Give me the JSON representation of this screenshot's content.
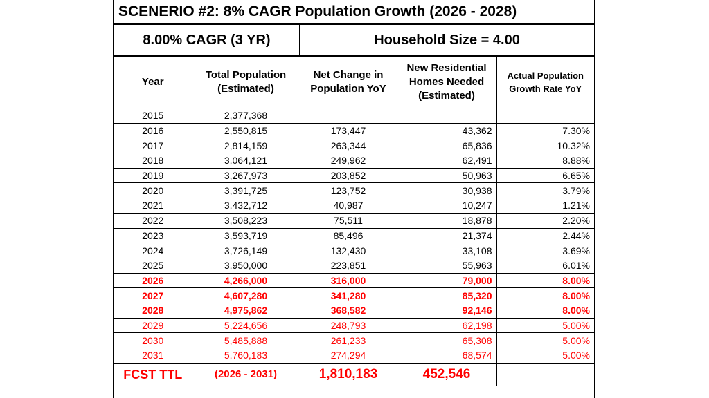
{
  "title": "SCENERIO #2: 8% CAGR Population Growth (2026 - 2028)",
  "subheader": {
    "cagr": "8.00% CAGR (3 YR)",
    "household": "Household Size = 4.00"
  },
  "columns": {
    "year": "Year",
    "population": [
      "Total Population",
      "(Estimated)"
    ],
    "net_change": [
      "Net Change in",
      "Population YoY"
    ],
    "homes": [
      "New Residential",
      "Homes Needed",
      "(Estimated)"
    ],
    "growth": [
      "Actual Population",
      "Growth Rate YoY"
    ]
  },
  "rows": [
    {
      "year": "2015",
      "population": "2,377,368",
      "net_change": "",
      "homes": "",
      "growth": "",
      "style": "normal"
    },
    {
      "year": "2016",
      "population": "2,550,815",
      "net_change": "173,447",
      "homes": "43,362",
      "growth": "7.30%",
      "style": "normal"
    },
    {
      "year": "2017",
      "population": "2,814,159",
      "net_change": "263,344",
      "homes": "65,836",
      "growth": "10.32%",
      "style": "normal"
    },
    {
      "year": "2018",
      "population": "3,064,121",
      "net_change": "249,962",
      "homes": "62,491",
      "growth": "8.88%",
      "style": "normal"
    },
    {
      "year": "2019",
      "population": "3,267,973",
      "net_change": "203,852",
      "homes": "50,963",
      "growth": "6.65%",
      "style": "normal"
    },
    {
      "year": "2020",
      "population": "3,391,725",
      "net_change": "123,752",
      "homes": "30,938",
      "growth": "3.79%",
      "style": "normal"
    },
    {
      "year": "2021",
      "population": "3,432,712",
      "net_change": "40,987",
      "homes": "10,247",
      "growth": "1.21%",
      "style": "normal"
    },
    {
      "year": "2022",
      "population": "3,508,223",
      "net_change": "75,511",
      "homes": "18,878",
      "growth": "2.20%",
      "style": "normal"
    },
    {
      "year": "2023",
      "population": "3,593,719",
      "net_change": "85,496",
      "homes": "21,374",
      "growth": "2.44%",
      "style": "normal"
    },
    {
      "year": "2024",
      "population": "3,726,149",
      "net_change": "132,430",
      "homes": "33,108",
      "growth": "3.69%",
      "style": "normal"
    },
    {
      "year": "2025",
      "population": "3,950,000",
      "net_change": "223,851",
      "homes": "55,963",
      "growth": "6.01%",
      "style": "normal"
    },
    {
      "year": "2026",
      "population": "4,266,000",
      "net_change": "316,000",
      "homes": "79,000",
      "growth": "8.00%",
      "style": "forecast-bold"
    },
    {
      "year": "2027",
      "population": "4,607,280",
      "net_change": "341,280",
      "homes": "85,320",
      "growth": "8.00%",
      "style": "forecast-bold"
    },
    {
      "year": "2028",
      "population": "4,975,862",
      "net_change": "368,582",
      "homes": "92,146",
      "growth": "8.00%",
      "style": "forecast-bold"
    },
    {
      "year": "2029",
      "population": "5,224,656",
      "net_change": "248,793",
      "homes": "62,198",
      "growth": "5.00%",
      "style": "forecast"
    },
    {
      "year": "2030",
      "population": "5,485,888",
      "net_change": "261,233",
      "homes": "65,308",
      "growth": "5.00%",
      "style": "forecast"
    },
    {
      "year": "2031",
      "population": "5,760,183",
      "net_change": "274,294",
      "homes": "68,574",
      "growth": "5.00%",
      "style": "forecast"
    }
  ],
  "total": {
    "label": "FCST TTL",
    "range": "(2026 - 2031)",
    "net_change": "1,810,183",
    "homes": "452,546",
    "growth": ""
  },
  "colors": {
    "forecast": "#ff0000",
    "text": "#000000",
    "grid": "#000000"
  }
}
